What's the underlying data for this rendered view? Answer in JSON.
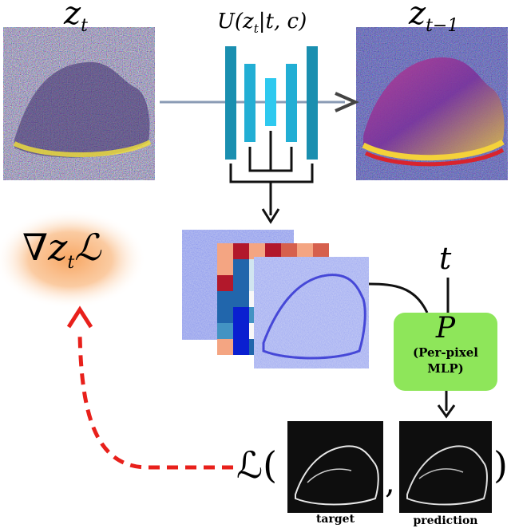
{
  "labels": {
    "zt": "z",
    "zt_sub": "t",
    "zt1": "z",
    "zt1_sub": "t−1",
    "unet": "U(z",
    "unet_sub": "t",
    "unet_rest": "|t, c)",
    "grad_nabla": "∇",
    "grad_z": "z",
    "grad_sub": "t",
    "grad_L": "ℒ",
    "t_input": "t",
    "mlp_symbol": "P",
    "mlp_line1": "(Per-pixel",
    "mlp_line2": "MLP)",
    "loss_open": "ℒ(",
    "loss_comma": ",",
    "loss_close": ")",
    "target_label": "target",
    "prediction_label": "prediction"
  },
  "colors": {
    "unet_dark": "#1a8fb0",
    "unet_mid": "#22aed4",
    "unet_light": "#2ec9ef",
    "mlp_box": "#8ee65a",
    "grad_glow": "#f7a15a",
    "loss_arrow": "#e8201b",
    "arrow": "#222222"
  }
}
